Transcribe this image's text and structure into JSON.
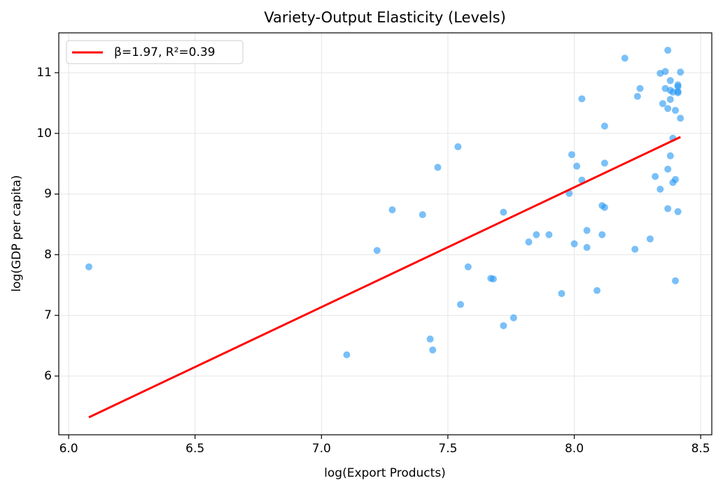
{
  "chart_data": {
    "type": "scatter",
    "title": "Variety-Output Elasticity (Levels)",
    "x_label": "log(Export Products)",
    "y_label": "log(GDP per capita)",
    "xlim": [
      5.961,
      8.544
    ],
    "ylim": [
      5.032,
      11.657
    ],
    "xticks": [
      {
        "value": 6,
        "label": "6.0"
      },
      6.5,
      {
        "value": 7,
        "label": "7.0"
      },
      7.5,
      {
        "value": 8,
        "label": "8.0"
      },
      8.5
    ],
    "yticks": [
      6,
      7,
      8,
      9,
      10,
      11
    ],
    "grid": true,
    "legend": "upper left",
    "series": [
      {
        "color": "#2196f3",
        "x": [
          6.08,
          7.1,
          7.22,
          7.28,
          7.4,
          7.43,
          7.44,
          7.46,
          7.54,
          7.55,
          7.58,
          7.67,
          7.68,
          7.72,
          7.72,
          7.76,
          7.82,
          7.85,
          7.9,
          7.95,
          7.98,
          7.99,
          8.0,
          8.01,
          8.03,
          8.03,
          8.05,
          8.05,
          8.09,
          8.11,
          8.11,
          8.12,
          8.12,
          8.12,
          8.2,
          8.24,
          8.25,
          8.26,
          8.3,
          8.32,
          8.34,
          8.34,
          8.35,
          8.36,
          8.36,
          8.37,
          8.37,
          8.37,
          8.37,
          8.38,
          8.38,
          8.38,
          8.38,
          8.39,
          8.39,
          8.39,
          8.4,
          8.4,
          8.4,
          8.41,
          8.41,
          8.41,
          8.41,
          8.41,
          8.42,
          8.42
        ],
        "values": [
          7.8,
          6.35,
          8.07,
          8.74,
          8.66,
          6.61,
          6.43,
          9.44,
          9.78,
          7.18,
          7.8,
          7.61,
          7.6,
          6.83,
          8.7,
          6.96,
          8.21,
          8.33,
          8.33,
          7.36,
          9.01,
          9.65,
          8.18,
          9.46,
          10.57,
          9.23,
          8.4,
          8.12,
          7.41,
          8.33,
          8.81,
          9.51,
          8.78,
          10.12,
          11.24,
          8.09,
          10.61,
          10.74,
          8.26,
          9.29,
          9.08,
          10.99,
          10.49,
          11.02,
          10.74,
          10.41,
          11.37,
          8.76,
          9.41,
          9.63,
          10.87,
          10.71,
          10.56,
          10.68,
          9.19,
          9.92,
          10.38,
          9.24,
          7.57,
          8.71,
          10.69,
          10.8,
          10.77,
          10.67,
          10.25,
          11.01
        ]
      },
      {
        "type": "line",
        "name": "β=1.97, R²=0.39",
        "color": "#ff0000",
        "x": [
          6.08,
          8.42
        ],
        "values": [
          5.32,
          9.94
        ]
      }
    ]
  }
}
